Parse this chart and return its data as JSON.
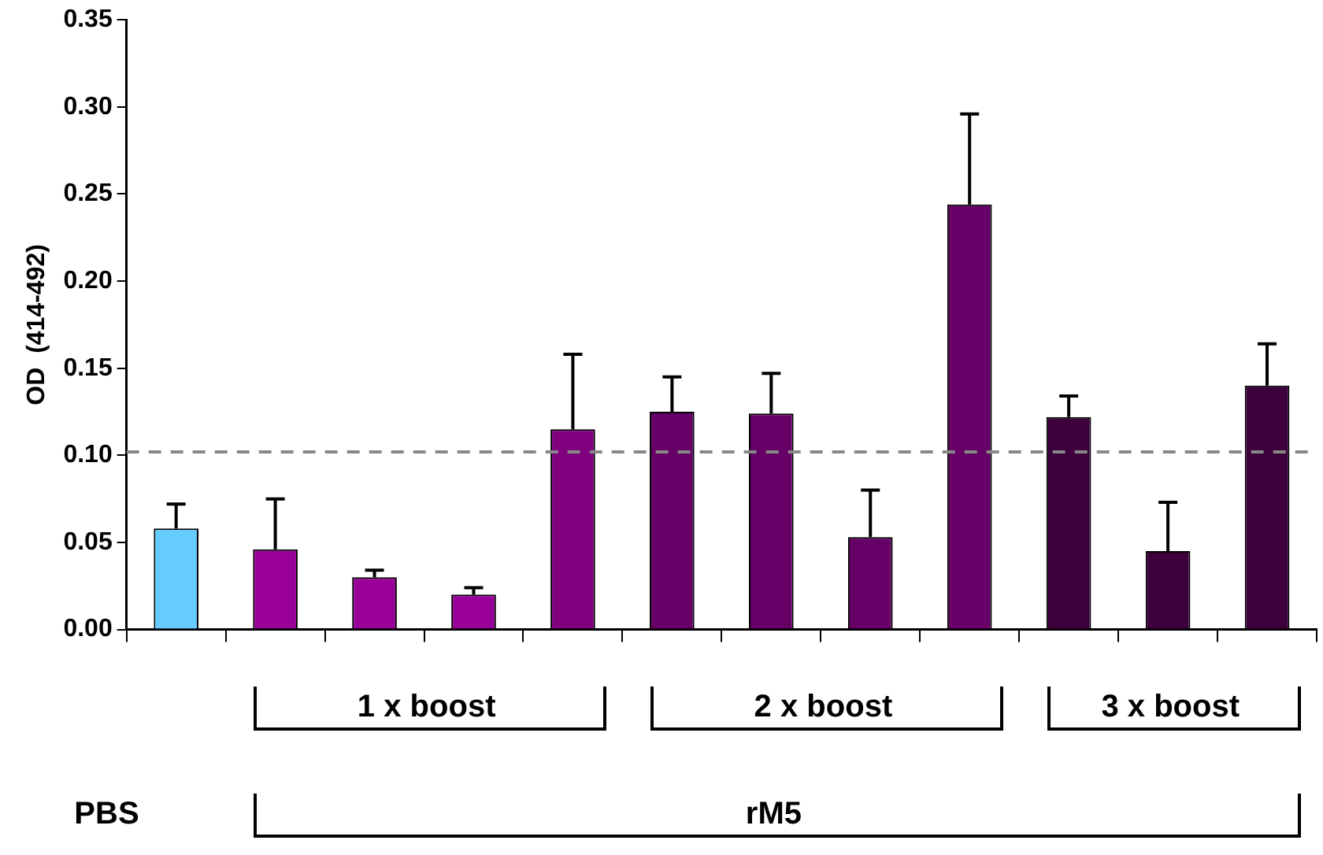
{
  "chart_data": {
    "type": "bar",
    "ylabel": "OD  (414-492)",
    "categories": [
      null,
      null,
      null,
      null,
      null,
      null,
      null,
      null,
      null,
      null,
      null,
      null
    ],
    "values": [
      0.058,
      0.046,
      0.03,
      0.02,
      0.115,
      0.125,
      0.124,
      0.053,
      0.244,
      0.122,
      0.045,
      0.14
    ],
    "colors": [
      "#66ccff",
      "#990099",
      "#990099",
      "#990099",
      "#800080",
      "#660066",
      "#660066",
      "#660066",
      "#660066",
      "#3d003d",
      "#3d003d",
      "#3d003d"
    ],
    "errors": [
      [
        0.058,
        0.072
      ],
      [
        0.046,
        0.075
      ],
      [
        0.03,
        0.034
      ],
      [
        0.02,
        0.024
      ],
      [
        0.115,
        0.158
      ],
      [
        0.125,
        0.145
      ],
      [
        0.124,
        0.147
      ],
      [
        0.053,
        0.08
      ],
      [
        0.244,
        0.296
      ],
      [
        0.122,
        0.134
      ],
      [
        0.045,
        0.073
      ],
      [
        0.14,
        0.164
      ]
    ],
    "ylim": [
      0,
      0.35
    ],
    "yticks": [
      {
        "value": 0,
        "label": "0.00"
      },
      {
        "value": 0.05,
        "label": "0.05"
      },
      {
        "value": 0.1,
        "label": "0.10"
      },
      {
        "value": 0.15,
        "label": "0.15"
      },
      {
        "value": 0.2,
        "label": "0.20"
      },
      {
        "value": 0.25,
        "label": "0.25"
      },
      {
        "value": 0.3,
        "label": "0.30"
      },
      {
        "value": 0.35,
        "label": "0.35"
      }
    ],
    "ref_lines": [
      {
        "axis": "y",
        "value": 0.102,
        "color": "#888888",
        "line_style": "dashed"
      }
    ],
    "annotations": [
      "1 x boost",
      "2 x boost",
      "3 x boost",
      "PBS",
      "rM5"
    ],
    "grid": false,
    "legend": false
  }
}
